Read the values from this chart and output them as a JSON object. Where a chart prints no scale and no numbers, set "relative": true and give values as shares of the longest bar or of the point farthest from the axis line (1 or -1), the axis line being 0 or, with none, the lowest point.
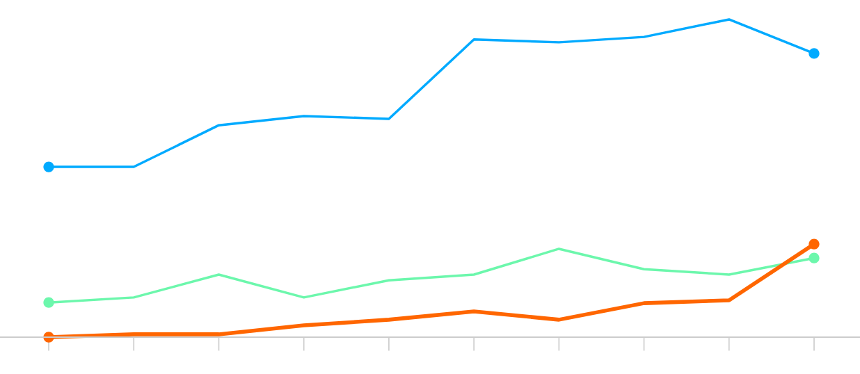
{
  "chart_data": {
    "type": "line",
    "relative": true,
    "grid": false,
    "categories": [
      null,
      null,
      null,
      null,
      null,
      null,
      null,
      null,
      null,
      null
    ],
    "series": [
      {
        "color": "#00aaff",
        "values": [
          0.536,
          0.536,
          0.667,
          0.696,
          0.687,
          0.937,
          0.928,
          0.945,
          1,
          0.893
        ]
      },
      {
        "color": "#6cf7ac",
        "values": [
          0.109,
          0.125,
          0.197,
          0.125,
          0.179,
          0.197,
          0.278,
          0.214,
          0.197,
          0.249
        ]
      },
      {
        "color": "#ff6600",
        "values": [
          0,
          0.009,
          0.009,
          0.037,
          0.055,
          0.081,
          0.055,
          0.107,
          0.116,
          0.293
        ]
      }
    ]
  }
}
